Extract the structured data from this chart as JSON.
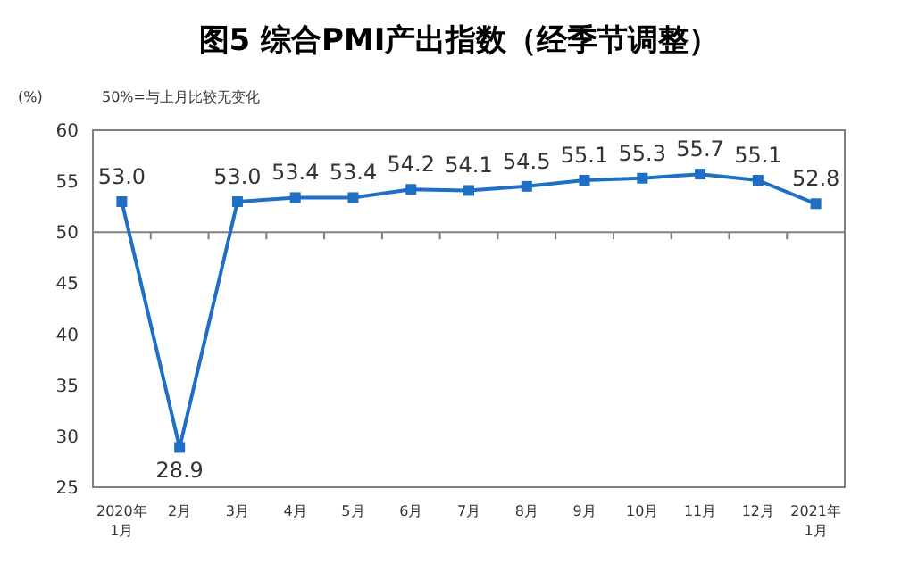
{
  "chart_data": {
    "type": "line",
    "title": "图5 综合PMI产出指数（经季节调整）",
    "ylabel": "(%)",
    "annotations": [
      "50%=与上月比较无变化"
    ],
    "categories": [
      "2020年\n1月",
      "2月",
      "3月",
      "4月",
      "5月",
      "6月",
      "7月",
      "8月",
      "9月",
      "10月",
      "11月",
      "12月",
      "2021年\n1月"
    ],
    "values": [
      53.0,
      28.9,
      53.0,
      53.4,
      53.4,
      54.2,
      54.1,
      54.5,
      55.1,
      55.3,
      55.7,
      55.1,
      52.8
    ],
    "value_labels": [
      "53.0",
      "28.9",
      "53.0",
      "53.4",
      "53.4",
      "54.2",
      "54.1",
      "54.5",
      "55.1",
      "55.3",
      "55.7",
      "55.1",
      "52.8"
    ],
    "color": "#1f6fc5",
    "marker": "square",
    "ylim": [
      25,
      60
    ],
    "yticks": [
      25,
      30,
      35,
      40,
      45,
      50,
      55,
      60
    ],
    "ref_lines": [
      {
        "axis": "y",
        "value": 50,
        "color": "#808080"
      }
    ],
    "grid": false
  }
}
